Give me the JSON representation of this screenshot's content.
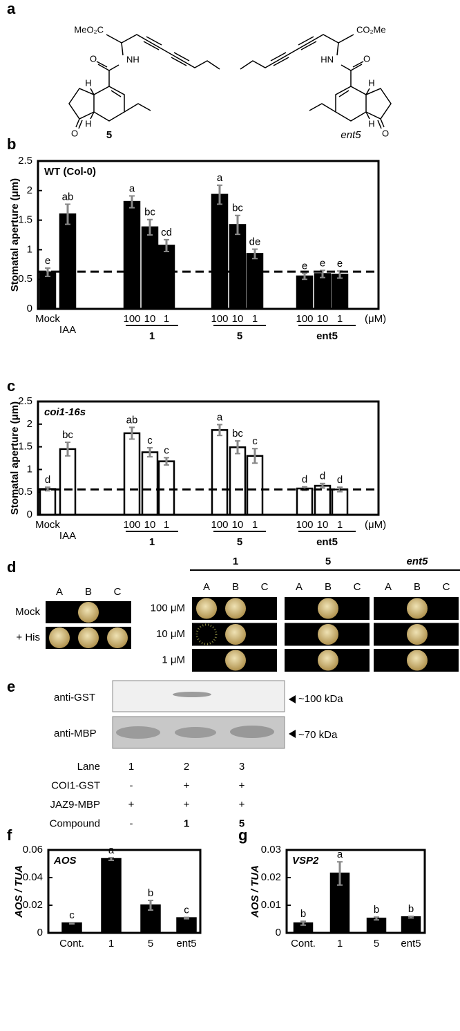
{
  "panel_labels": [
    "a",
    "b",
    "c",
    "d",
    "e",
    "f",
    "g"
  ],
  "structures": {
    "left": {
      "ester": "MeO₂C",
      "amide": "NH",
      "carbonyl": "O",
      "ketone": "O",
      "h_top": "H",
      "h_bottom": "H",
      "label": "5"
    },
    "right": {
      "ester": "CO₂Me",
      "amide": "HN",
      "carbonyl": "O",
      "ketone": "O",
      "h_top": "H",
      "h_bottom": "H",
      "label": "ent5"
    }
  },
  "chart_data": [
    {
      "type": "bar",
      "title": "WT (Col-0)",
      "ylabel": "Stomatal aperture (μm)",
      "categories": [
        "Mock",
        "IAA",
        "100",
        "10",
        "1",
        "100",
        "10",
        "1",
        "100",
        "10",
        "1"
      ],
      "unit": "(μM)",
      "groups": [
        {
          "label": "1",
          "from": 2,
          "to": 4
        },
        {
          "label": "5",
          "from": 5,
          "to": 7
        },
        {
          "label": "ent5",
          "from": 8,
          "to": 10
        }
      ],
      "values": [
        0.62,
        1.6,
        1.81,
        1.38,
        1.07,
        1.93,
        1.42,
        0.93,
        0.55,
        0.59,
        0.58
      ],
      "errors": [
        0.07,
        0.17,
        0.1,
        0.13,
        0.1,
        0.16,
        0.16,
        0.08,
        0.05,
        0.06,
        0.06
      ],
      "letters": [
        "e",
        "ab",
        "a",
        "bc",
        "cd",
        "a",
        "bc",
        "de",
        "e",
        "e",
        "e"
      ],
      "reference_line": 0.63,
      "color": "#000000",
      "ylim": [
        0,
        2.5
      ],
      "yticks": [
        0,
        0.5,
        1,
        1.5,
        2,
        2.5
      ]
    },
    {
      "type": "bar",
      "title": "coi1-16s",
      "ylabel": "Stomatal aperture (μm)",
      "categories": [
        "Mock",
        "IAA",
        "100",
        "10",
        "1",
        "100",
        "10",
        "1",
        "100",
        "10",
        "1"
      ],
      "unit": "(μM)",
      "groups": [
        {
          "label": "1",
          "from": 2,
          "to": 4
        },
        {
          "label": "5",
          "from": 5,
          "to": 7
        },
        {
          "label": "ent5",
          "from": 8,
          "to": 10
        }
      ],
      "values": [
        0.57,
        1.45,
        1.8,
        1.38,
        1.18,
        1.87,
        1.49,
        1.3,
        0.58,
        0.64,
        0.56
      ],
      "errors": [
        0.04,
        0.15,
        0.13,
        0.1,
        0.08,
        0.12,
        0.14,
        0.16,
        0.04,
        0.05,
        0.05
      ],
      "letters": [
        "d",
        "bc",
        "ab",
        "c",
        "c",
        "a",
        "bc",
        "c",
        "d",
        "d",
        "d"
      ],
      "reference_line": 0.56,
      "color": "#ffffff",
      "ylim": [
        0,
        2.5
      ],
      "yticks": [
        0,
        0.5,
        1,
        1.5,
        2,
        2.5
      ]
    },
    {
      "type": "bar",
      "title": "AOS",
      "ylabel": "AOS / TUA",
      "categories": [
        "Cont.",
        "1",
        "5",
        "ent5"
      ],
      "values": [
        0.007,
        0.0535,
        0.02,
        0.0107
      ],
      "errors": [
        0.0005,
        0.001,
        0.0035,
        0.0005
      ],
      "letters": [
        "c",
        "a",
        "b",
        "c"
      ],
      "color": "#000000",
      "ylim": [
        0,
        0.06
      ],
      "yticks": [
        0,
        0.02,
        0.04,
        0.06
      ]
    },
    {
      "type": "bar",
      "title": "VSP2",
      "ylabel": "AOS / TUA",
      "categories": [
        "Cont.",
        "1",
        "5",
        "ent5"
      ],
      "values": [
        0.0035,
        0.0215,
        0.0052,
        0.0057
      ],
      "errors": [
        0.0007,
        0.0042,
        0.0005,
        0.0003
      ],
      "letters": [
        "b",
        "a",
        "b",
        "b"
      ],
      "color": "#000000",
      "ylim": [
        0,
        0.03
      ],
      "yticks": [
        0,
        0.01,
        0.02,
        0.03
      ]
    }
  ],
  "yeast": {
    "left": {
      "columns": [
        "A",
        "B",
        "C"
      ],
      "rows": [
        "Mock",
        "+ His"
      ]
    },
    "right": {
      "rows": [
        "100 μM",
        "10 μM",
        "1 μM"
      ],
      "compounds": [
        {
          "name": "1",
          "columns": [
            "A",
            "B",
            "C"
          ]
        },
        {
          "name": "5",
          "columns": [
            "A",
            "B",
            "C"
          ]
        },
        {
          "name": "ent5",
          "columns": [
            "A",
            "B",
            "C"
          ]
        }
      ]
    }
  },
  "western": {
    "blots": [
      {
        "antibody": "anti-GST",
        "size": "~100 kDa"
      },
      {
        "antibody": "anti-MBP",
        "size": "~70 kDa"
      }
    ],
    "rows": [
      {
        "label": "Lane",
        "cells": [
          "1",
          "2",
          "3"
        ]
      },
      {
        "label": "COI1-GST",
        "cells": [
          "-",
          "+",
          "+"
        ]
      },
      {
        "label": "JAZ9-MBP",
        "cells": [
          "+",
          "+",
          "+"
        ]
      },
      {
        "label": "Compound",
        "cells": [
          "-",
          "1",
          "5"
        ]
      }
    ]
  }
}
